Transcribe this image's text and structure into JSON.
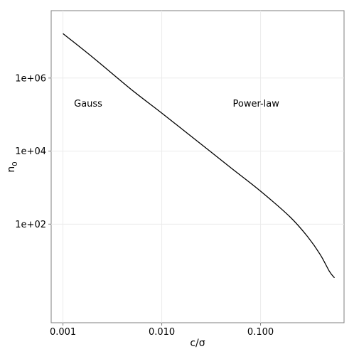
{
  "chart_data": {
    "type": "line",
    "xlabel": "c/σ",
    "ylabel": {
      "base": "n",
      "subscript": "0"
    },
    "x_scale": "log10",
    "y_scale": "log10",
    "xlim": [
      0.00076,
      0.7
    ],
    "ylim": [
      0.2,
      70000000
    ],
    "x_ticks": [
      {
        "value": 0.001,
        "label": "0.001"
      },
      {
        "value": 0.01,
        "label": "0.010"
      },
      {
        "value": 0.1,
        "label": "0.100"
      }
    ],
    "y_ticks": [
      {
        "value": 100,
        "label": "1e+02"
      },
      {
        "value": 10000,
        "label": "1e+04"
      },
      {
        "value": 1000000,
        "label": "1e+06"
      }
    ],
    "grid": true,
    "annotations": [
      {
        "text": "Gauss",
        "x": 0.0018,
        "y": 200000
      },
      {
        "text": "Power-law",
        "x": 0.09,
        "y": 200000
      }
    ],
    "series": [
      {
        "color": "#000000",
        "points": [
          [
            0.001,
            16500000
          ],
          [
            0.002,
            3700000
          ],
          [
            0.005,
            470000
          ],
          [
            0.01,
            110000
          ],
          [
            0.02,
            25000
          ],
          [
            0.05,
            3500
          ],
          [
            0.1,
            800
          ],
          [
            0.2,
            155
          ],
          [
            0.3,
            45
          ],
          [
            0.4,
            15
          ],
          [
            0.5,
            5
          ],
          [
            0.56,
            3.4
          ]
        ]
      }
    ]
  }
}
